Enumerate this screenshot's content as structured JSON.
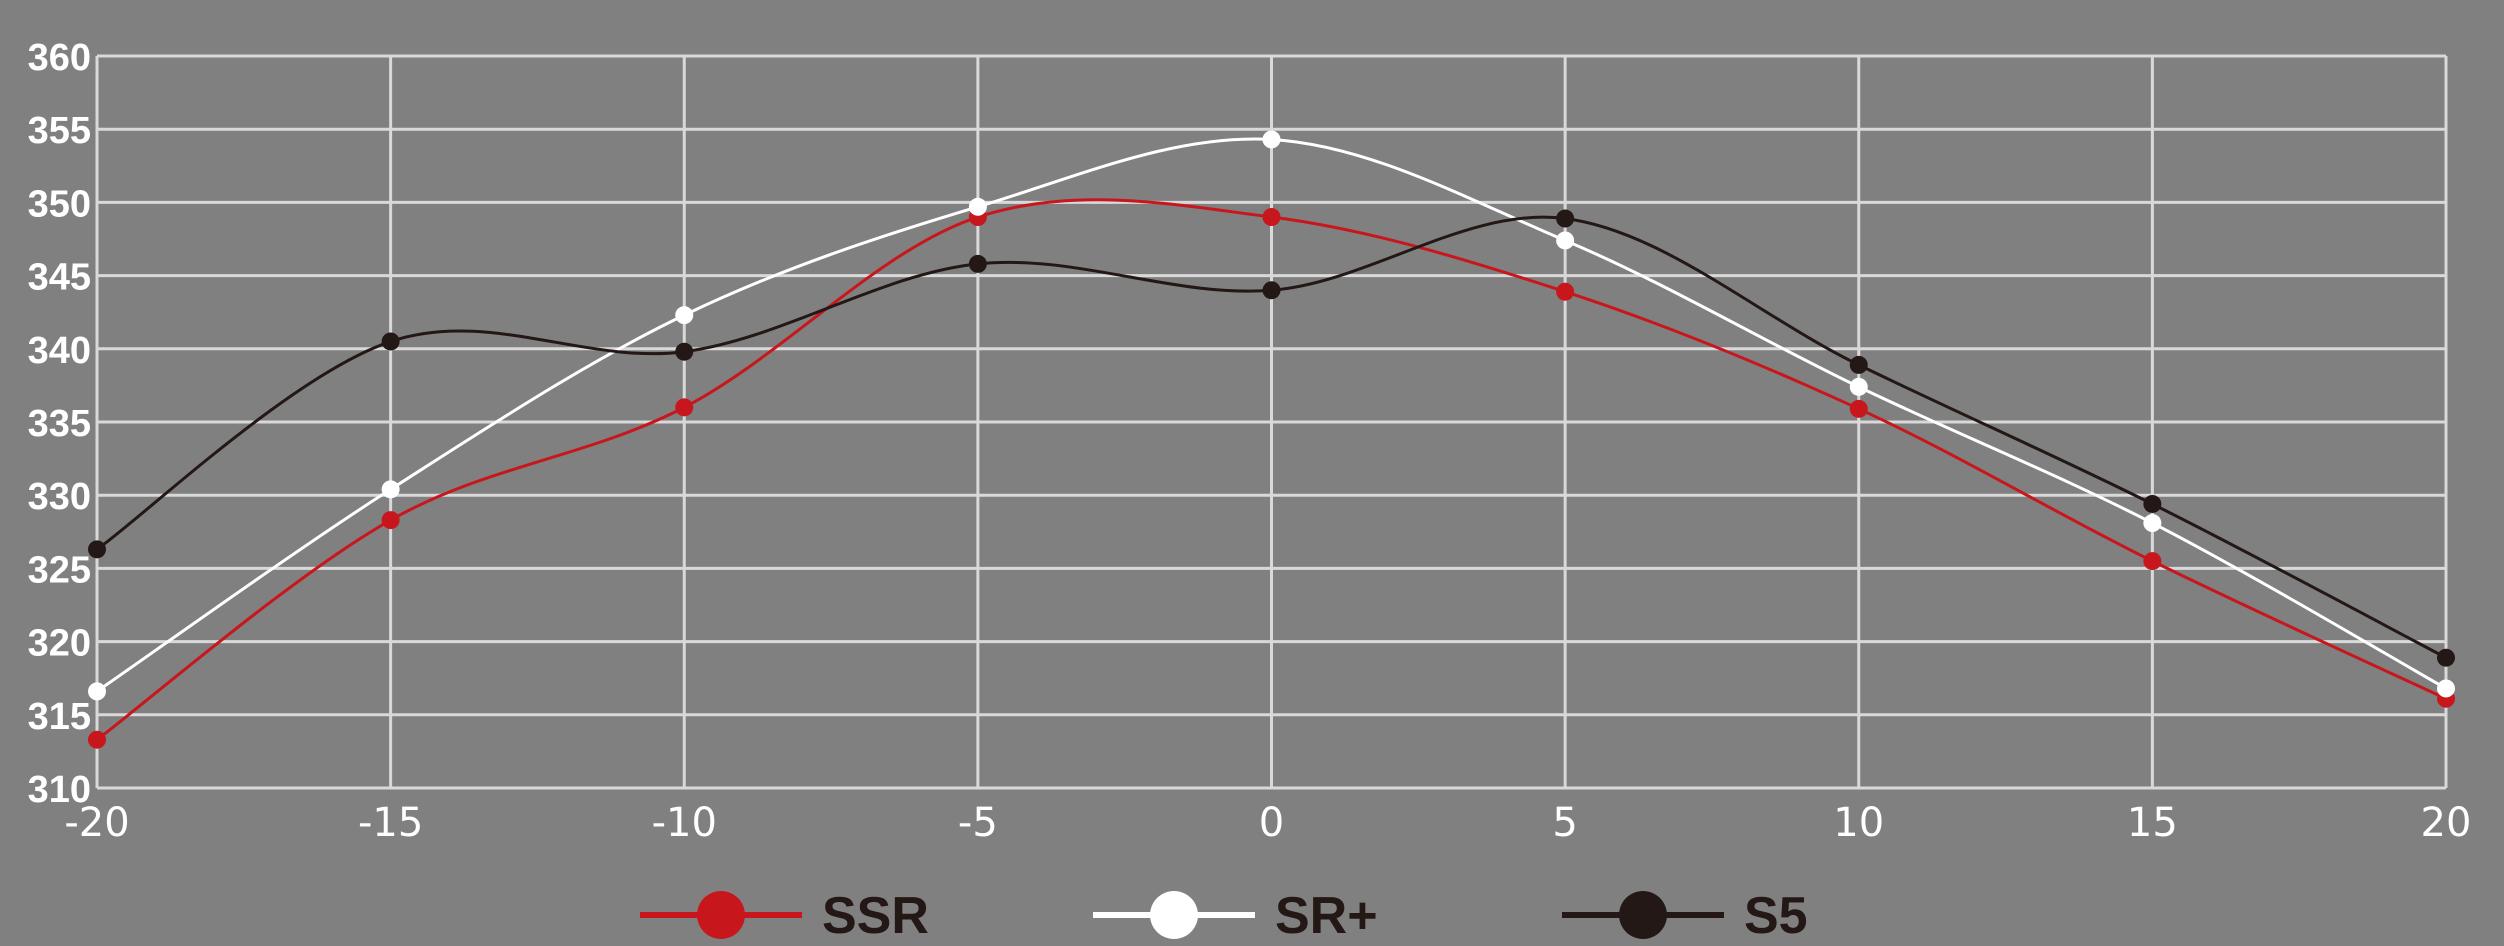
{
  "chart_data": {
    "type": "line",
    "title": "",
    "xlabel": "",
    "ylabel": "",
    "x": [
      -20,
      -15,
      -10,
      -5,
      0,
      5,
      10,
      15,
      20
    ],
    "xlim": [
      -20,
      20
    ],
    "ylim": [
      310,
      360
    ],
    "xticks": [
      "-20",
      "-15",
      "-10",
      "-5",
      "0",
      "5",
      "10",
      "15",
      "20"
    ],
    "yticks": [
      "310",
      "315",
      "320",
      "325",
      "330",
      "335",
      "340",
      "345",
      "350",
      "355",
      "360"
    ],
    "grid": true,
    "smooth": true,
    "legend_position": "bottom-center",
    "series": [
      {
        "name": "SSR",
        "color": "#c8161d",
        "values": [
          313.3,
          328.3,
          336.0,
          349.0,
          349.0,
          343.9,
          335.9,
          325.5,
          316.1
        ]
      },
      {
        "name": "SR+",
        "color": "#ffffff",
        "values": [
          316.6,
          330.4,
          342.3,
          349.7,
          354.3,
          347.4,
          337.4,
          328.1,
          316.8
        ]
      },
      {
        "name": "S5",
        "color": "#231815",
        "values": [
          326.3,
          340.5,
          339.8,
          345.8,
          344.0,
          348.9,
          338.9,
          329.4,
          318.9
        ]
      }
    ]
  },
  "style": {
    "background": "#808080",
    "grid_color": "#d9d9d9",
    "ytick_color": "#ffffff",
    "xtick_color": "#ffffff",
    "legend_text_color": "#231815"
  }
}
